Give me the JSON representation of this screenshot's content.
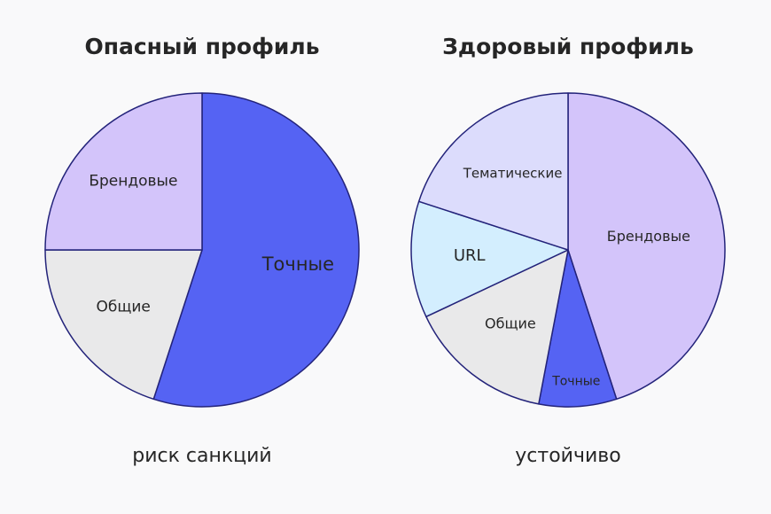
{
  "chart_data": [
    {
      "type": "pie",
      "title": "Опасный профиль",
      "caption": "риск санкций",
      "start_angle_deg": 0,
      "direction": "clockwise",
      "slices": [
        {
          "label": "Точные",
          "value": 55,
          "color": "#5563f3"
        },
        {
          "label": "Общие",
          "value": 20,
          "color": "#e9e9ea"
        },
        {
          "label": "Брендовые",
          "value": 25,
          "color": "#d3c4fa"
        }
      ]
    },
    {
      "type": "pie",
      "title": "Здоровый профиль",
      "caption": "устойчиво",
      "start_angle_deg": 0,
      "direction": "clockwise",
      "slices": [
        {
          "label": "Брендовые",
          "value": 45,
          "color": "#d3c4fa"
        },
        {
          "label": "Точные",
          "value": 8,
          "color": "#5563f3"
        },
        {
          "label": "Общие",
          "value": 15,
          "color": "#e9e9ea"
        },
        {
          "label": "URL",
          "value": 12,
          "color": "#d3eefe"
        },
        {
          "label": "Тематические",
          "value": 20,
          "color": "#dcdcfc"
        }
      ]
    }
  ]
}
